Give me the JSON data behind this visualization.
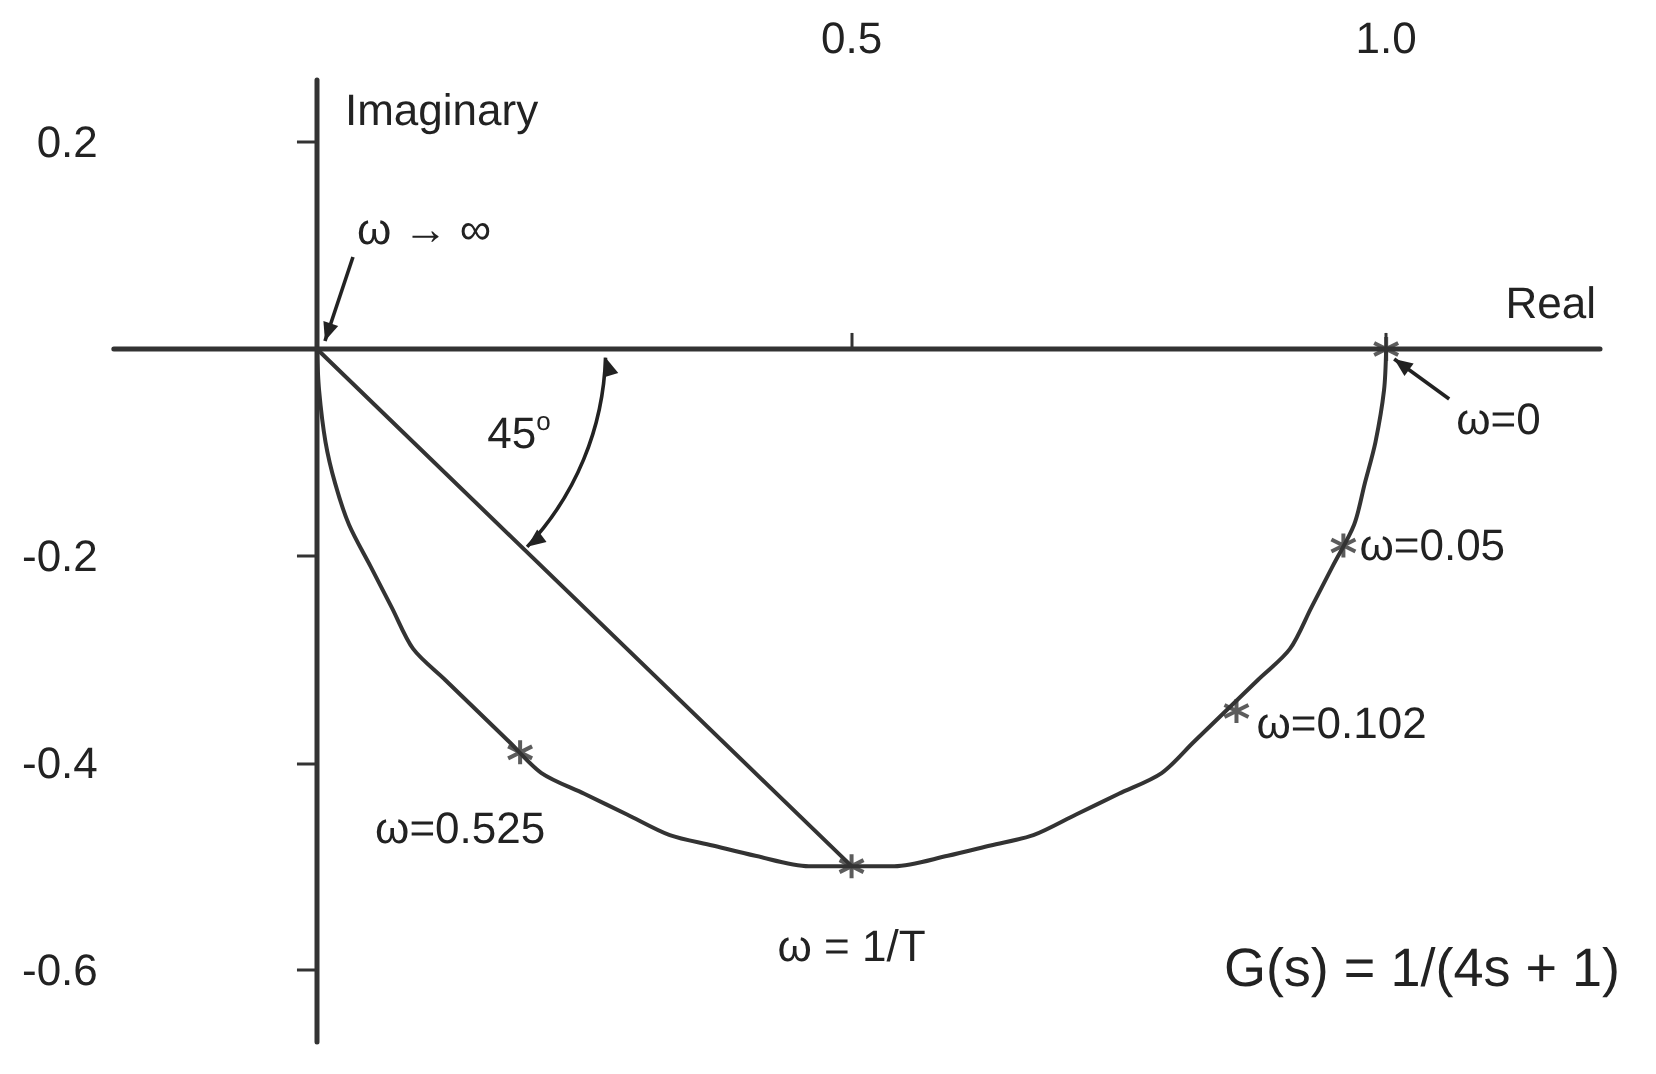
{
  "chart_data": {
    "type": "line",
    "xlabel": "Real",
    "ylabel": "Imaginary",
    "xlim": [
      -0.19,
      1.2
    ],
    "ylim": [
      -0.67,
      0.26
    ],
    "xticks": [
      0.5,
      {
        "value": 1,
        "label": "1.0"
      }
    ],
    "yticks": [
      0.2,
      -0.2,
      -0.4,
      -0.6
    ],
    "grid": false,
    "line_style": "solid",
    "series": [
      {
        "color": "#333333",
        "marker": "none",
        "x": [
          1,
          0.998,
          0.99,
          0.98,
          0.97,
          0.95,
          0.93,
          0.91,
          0.88,
          0.85,
          0.82,
          0.79,
          0.75,
          0.71,
          0.67,
          0.63,
          0.59,
          0.54,
          0.5,
          0.46,
          0.41,
          0.37,
          0.33,
          0.29,
          0.25,
          0.21,
          0.18,
          0.15,
          0.12,
          0.09,
          0.07,
          0.05,
          0.03,
          0.017,
          0.008,
          0.002,
          0
        ],
        "values": [
          0,
          -0.04,
          -0.09,
          -0.13,
          -0.17,
          -0.21,
          -0.25,
          -0.29,
          -0.32,
          -0.35,
          -0.38,
          -0.41,
          -0.43,
          -0.45,
          -0.47,
          -0.48,
          -0.49,
          -0.5,
          -0.5,
          -0.5,
          -0.49,
          -0.48,
          -0.47,
          -0.45,
          -0.43,
          -0.41,
          -0.38,
          -0.35,
          -0.32,
          -0.29,
          -0.25,
          -0.21,
          -0.17,
          -0.13,
          -0.09,
          -0.04,
          0
        ]
      },
      {
        "color": "#333333",
        "marker": "none",
        "x": [
          0,
          0.5
        ],
        "values": [
          0,
          -0.5
        ]
      },
      {
        "type": "scatter",
        "color": "#333333",
        "marker": "cross",
        "x": [
          1,
          0.96,
          0.86,
          0.5,
          0.19
        ],
        "values": [
          0,
          -0.19,
          -0.35,
          -0.5,
          -0.39
        ]
      }
    ],
    "annotations": [
      {
        "text": "ω → ∞",
        "x": 0,
        "y": 0
      },
      {
        "text": "ω=0",
        "x": 1,
        "y": 0
      },
      {
        "text": "ω=0.05",
        "x": 0.96,
        "y": -0.19
      },
      {
        "text": "ω=0.102",
        "x": 0.86,
        "y": -0.35
      },
      {
        "text": "ω = 1/T",
        "x": 0.5,
        "y": -0.5
      },
      {
        "text": "ω=0.525",
        "x": 0.19,
        "y": -0.39
      },
      "45$^{o}$",
      "G(s) = 1/(4s + 1)"
    ]
  }
}
